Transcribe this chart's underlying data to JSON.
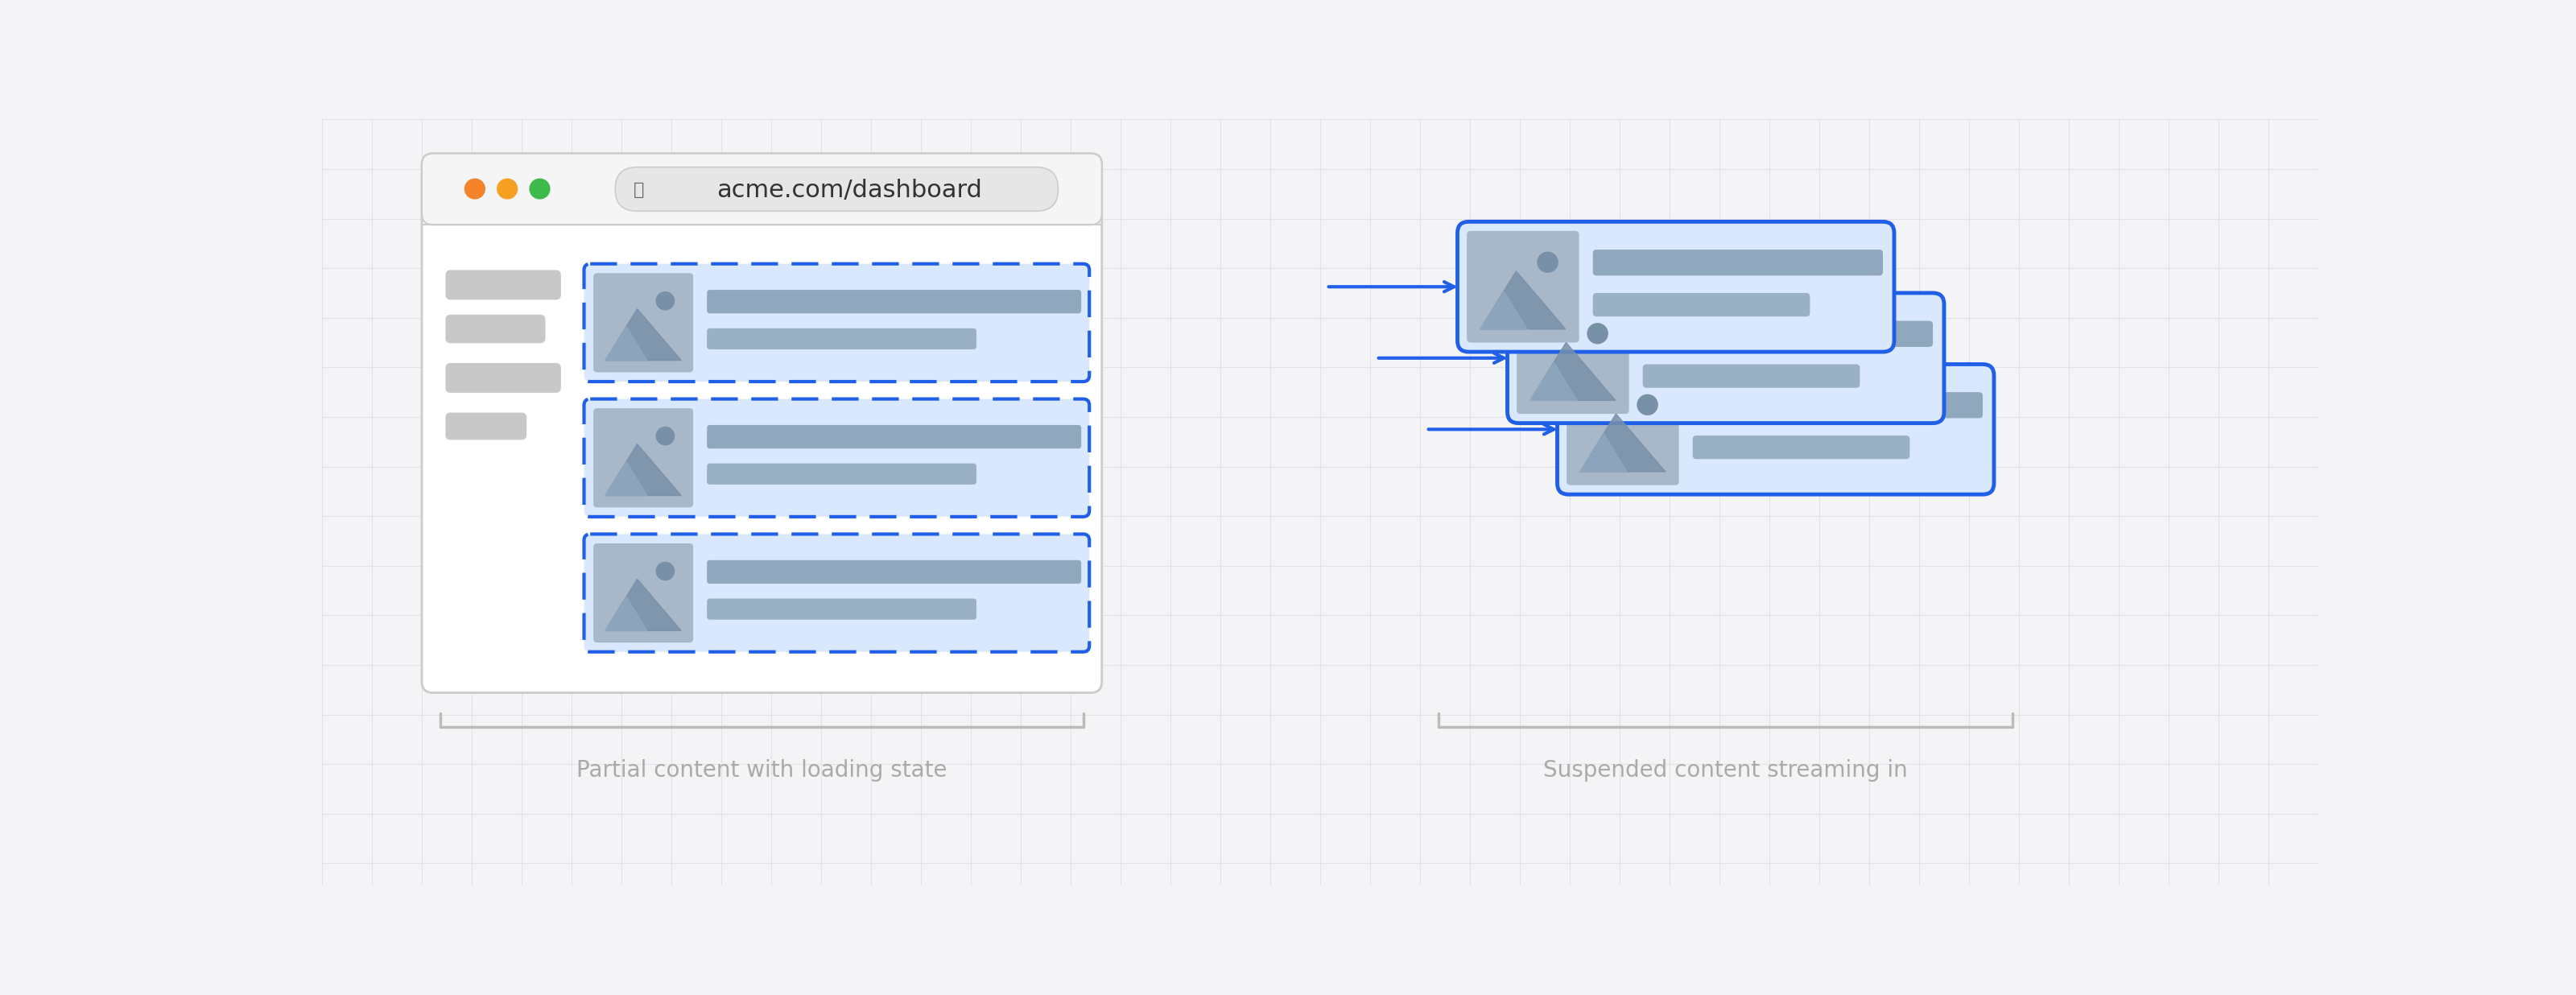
{
  "bg_color": "#f4f4f6",
  "grid_color": "#e2e2e6",
  "title_left": "Partial content with loading state",
  "title_right": "Suspended content streaming in",
  "title_color": "#aaaaaa",
  "title_fontsize": 20,
  "browser_bg": "#ffffff",
  "browser_border": "#cccccc",
  "browser_bar_bg": "#f5f5f5",
  "dot1_color": "#f5832a",
  "dot2_color": "#f5a020",
  "dot3_color": "#3dbb4a",
  "url_bar_color": "#e6e6e6",
  "url_text": "acme.com/dashboard",
  "blue_light": "#dae8fd",
  "blue_border": "#2060e8",
  "gray_sidebar": "#c8c8c8",
  "gray_card_img": "#a8b8c8",
  "gray_bar1": "#8fa8be",
  "gray_bar2": "#9ab0c4",
  "dashed_color": "#2060e8",
  "arrow_color": "#2060e8",
  "brace_color": "#cccccc",
  "white": "#ffffff",
  "card_stack_bg": "#ccddf8"
}
